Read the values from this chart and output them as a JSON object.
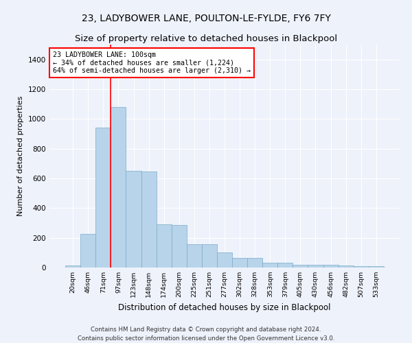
{
  "title1": "23, LADYBOWER LANE, POULTON-LE-FYLDE, FY6 7FY",
  "title2": "Size of property relative to detached houses in Blackpool",
  "xlabel": "Distribution of detached houses by size in Blackpool",
  "ylabel": "Number of detached properties",
  "categories": [
    "20sqm",
    "46sqm",
    "71sqm",
    "97sqm",
    "123sqm",
    "148sqm",
    "174sqm",
    "200sqm",
    "225sqm",
    "251sqm",
    "277sqm",
    "302sqm",
    "328sqm",
    "353sqm",
    "379sqm",
    "405sqm",
    "430sqm",
    "456sqm",
    "482sqm",
    "507sqm",
    "533sqm"
  ],
  "bar_heights": [
    15,
    225,
    940,
    1080,
    650,
    645,
    290,
    285,
    155,
    155,
    100,
    65,
    65,
    32,
    32,
    18,
    18,
    18,
    12,
    8,
    8
  ],
  "bar_color": "#b8d4ea",
  "bar_edge_color": "#7aaac8",
  "red_line_x": 2.5,
  "annotation_text": "23 LADYBOWER LANE: 100sqm\n← 34% of detached houses are smaller (1,224)\n64% of semi-detached houses are larger (2,310) →",
  "annotation_box_color": "white",
  "annotation_box_edge": "red",
  "ylim": [
    0,
    1500
  ],
  "yticks": [
    0,
    200,
    400,
    600,
    800,
    1000,
    1200,
    1400
  ],
  "footer1": "Contains HM Land Registry data © Crown copyright and database right 2024.",
  "footer2": "Contains public sector information licensed under the Open Government Licence v3.0.",
  "bg_color": "#eef2fb",
  "grid_color": "#ffffff",
  "title1_fontsize": 10,
  "title2_fontsize": 9.5,
  "xlabel_fontsize": 8.5,
  "ylabel_fontsize": 8
}
